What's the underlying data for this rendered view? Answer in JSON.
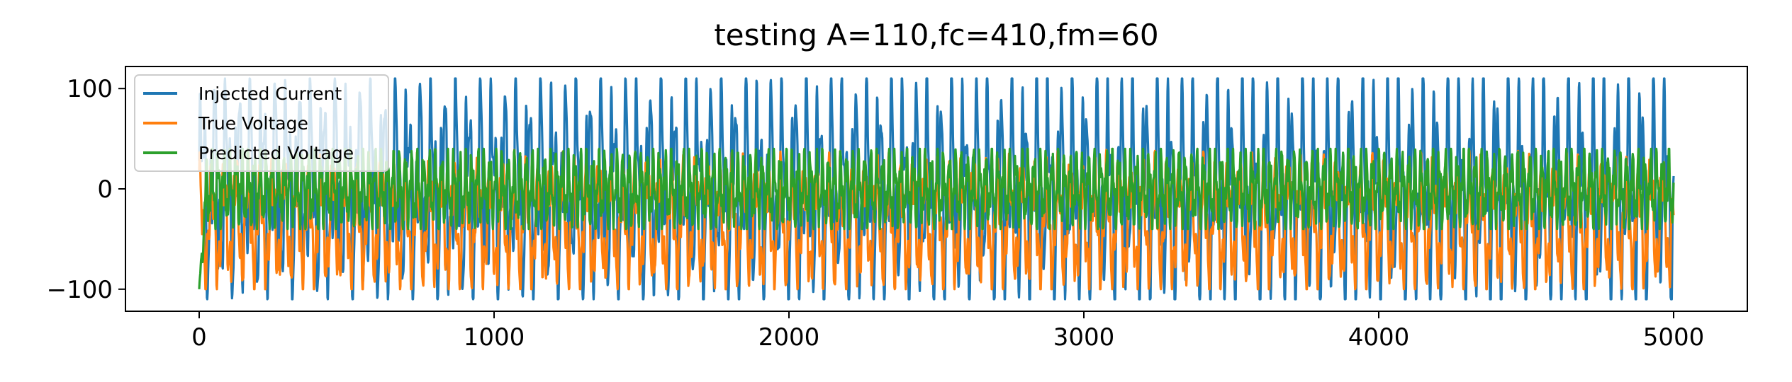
{
  "chart_data": {
    "type": "line",
    "title": "testing A=110,fc=410,fm=60",
    "xlabel": "",
    "ylabel": "",
    "xlim": [
      -250,
      5250
    ],
    "ylim": [
      -122,
      122
    ],
    "x_ticks": [
      0,
      1000,
      2000,
      3000,
      4000,
      5000
    ],
    "x_tick_labels": [
      "0",
      "1000",
      "2000",
      "3000",
      "4000",
      "5000"
    ],
    "y_ticks": [
      100,
      0,
      -100
    ],
    "y_tick_labels": [
      "100",
      "0",
      "−100"
    ],
    "grid": false,
    "legend_placement": "upper-left",
    "x_range": [
      0,
      5000
    ],
    "series": [
      {
        "name": "Injected Current",
        "color": "#1f77b4",
        "description": "oscillating signal, amplitude ~110, spanning x 0 to 5000",
        "amplitude": 110
      },
      {
        "name": "True Voltage",
        "color": "#ff7f0e",
        "description": "oscillating signal between about -100 and +40",
        "min": -100,
        "max": 40
      },
      {
        "name": "Predicted Voltage",
        "color": "#2ca02c",
        "description": "oscillating signal between about -40 and +40, starting near -100 at x=0",
        "min": -40,
        "max": 40,
        "start_value": -100
      }
    ]
  }
}
